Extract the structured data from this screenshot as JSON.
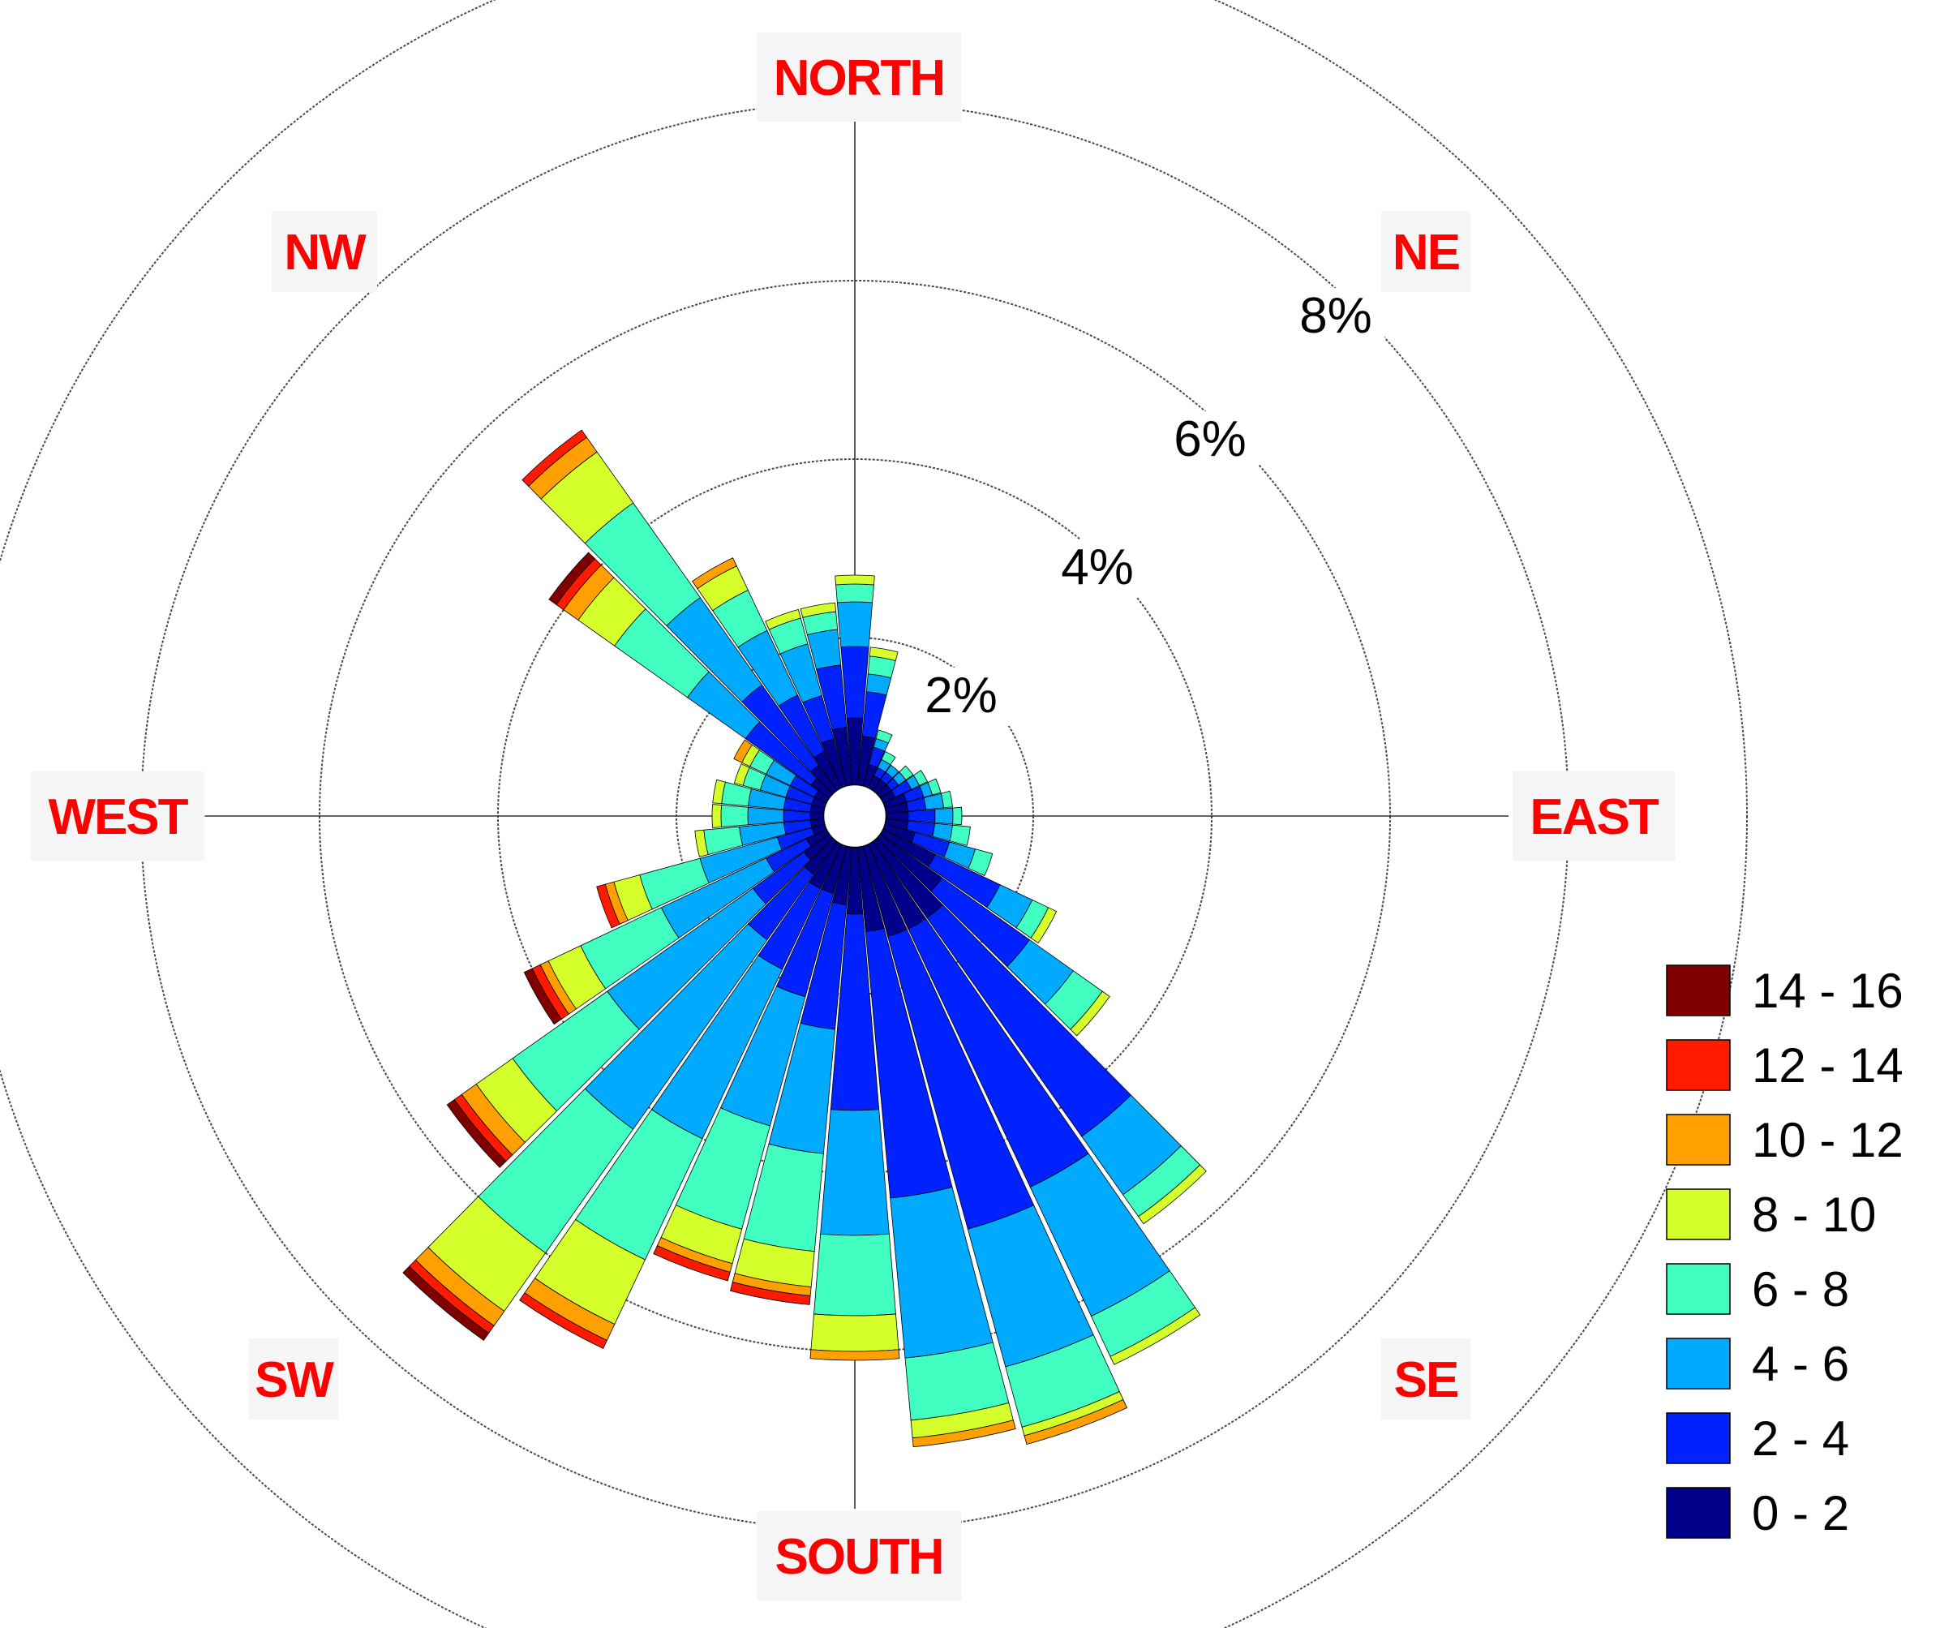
{
  "chart_data": {
    "type": "wind-rose",
    "directions": [
      "NORTH",
      "NE",
      "EAST",
      "SE",
      "SOUTH",
      "SW",
      "WEST",
      "NW"
    ],
    "ring_labels": [
      "2%",
      "4%",
      "6%",
      "8%"
    ],
    "rings": [
      2,
      4,
      6,
      8,
      10
    ],
    "radial_unit": "%",
    "legend_title": "",
    "legend_placement": "bottom-right",
    "speed_bins": [
      {
        "label": "14 - 16",
        "color": "#800000"
      },
      {
        "label": "12 - 14",
        "color": "#ff1a00"
      },
      {
        "label": "10 - 12",
        "color": "#ffa000"
      },
      {
        "label": "8 - 10",
        "color": "#d4ff2a"
      },
      {
        "label": "6 - 8",
        "color": "#40ffc0"
      },
      {
        "label": "4 - 6",
        "color": "#00aaff"
      },
      {
        "label": "2 - 4",
        "color": "#0022ff"
      },
      {
        "label": "0 - 2",
        "color": "#00008b"
      }
    ],
    "sector_width_deg": 10,
    "calm_radius_pct": 0.35,
    "sectors": [
      {
        "dir": 0,
        "cum": [
          1.1,
          1.9,
          2.4,
          2.6,
          2.7,
          2.7,
          2.7,
          2.7
        ]
      },
      {
        "dir": 10,
        "cum": [
          0.9,
          1.4,
          1.6,
          1.8,
          1.9,
          1.9,
          1.9,
          1.9
        ]
      },
      {
        "dir": 20,
        "cum": [
          0.6,
          0.8,
          0.9,
          1.0,
          1.0,
          1.0,
          1.0,
          1.0
        ]
      },
      {
        "dir": 30,
        "cum": [
          0.5,
          0.6,
          0.7,
          0.8,
          0.8,
          0.8,
          0.8,
          0.8
        ]
      },
      {
        "dir": 40,
        "cum": [
          0.5,
          0.6,
          0.7,
          0.7,
          0.7,
          0.7,
          0.7,
          0.7
        ]
      },
      {
        "dir": 50,
        "cum": [
          0.5,
          0.6,
          0.7,
          0.8,
          0.8,
          0.8,
          0.8,
          0.8
        ]
      },
      {
        "dir": 60,
        "cum": [
          0.5,
          0.7,
          0.8,
          0.9,
          0.9,
          0.9,
          0.9,
          0.9
        ]
      },
      {
        "dir": 70,
        "cum": [
          0.6,
          0.8,
          0.9,
          1.0,
          1.0,
          1.0,
          1.0,
          1.0
        ]
      },
      {
        "dir": 80,
        "cum": [
          0.6,
          0.8,
          1.0,
          1.1,
          1.1,
          1.1,
          1.1,
          1.1
        ]
      },
      {
        "dir": 90,
        "cum": [
          0.6,
          0.9,
          1.1,
          1.2,
          1.2,
          1.2,
          1.2,
          1.2
        ]
      },
      {
        "dir": 100,
        "cum": [
          0.6,
          0.9,
          1.1,
          1.3,
          1.3,
          1.3,
          1.3,
          1.3
        ]
      },
      {
        "dir": 110,
        "cum": [
          0.7,
          1.1,
          1.4,
          1.6,
          1.6,
          1.6,
          1.6,
          1.6
        ]
      },
      {
        "dir": 120,
        "cum": [
          1.0,
          1.8,
          2.2,
          2.4,
          2.5,
          2.5,
          2.5,
          2.5
        ]
      },
      {
        "dir": 130,
        "cum": [
          1.2,
          2.4,
          3.0,
          3.4,
          3.5,
          3.5,
          3.5,
          3.5
        ]
      },
      {
        "dir": 140,
        "cum": [
          1.4,
          4.4,
          5.2,
          5.5,
          5.6,
          5.6,
          5.6,
          5.6
        ]
      },
      {
        "dir": 150,
        "cum": [
          1.4,
          4.6,
          6.2,
          6.7,
          6.8,
          6.8,
          6.8,
          6.8
        ]
      },
      {
        "dir": 160,
        "cum": [
          1.4,
          4.8,
          6.4,
          7.1,
          7.2,
          7.3,
          7.3,
          7.3
        ]
      },
      {
        "dir": 170,
        "cum": [
          1.3,
          4.3,
          6.1,
          6.8,
          7.0,
          7.1,
          7.1,
          7.1
        ]
      },
      {
        "dir": 180,
        "cum": [
          1.1,
          3.3,
          4.7,
          5.6,
          6.0,
          6.1,
          6.1,
          6.1
        ]
      },
      {
        "dir": 190,
        "cum": [
          1.0,
          2.4,
          3.8,
          4.9,
          5.3,
          5.4,
          5.5,
          5.5
        ]
      },
      {
        "dir": 200,
        "cum": [
          0.9,
          2.1,
          3.6,
          4.8,
          5.2,
          5.3,
          5.4,
          5.4
        ]
      },
      {
        "dir": 210,
        "cum": [
          0.9,
          1.9,
          4.0,
          5.5,
          6.3,
          6.5,
          6.6,
          6.6
        ]
      },
      {
        "dir": 220,
        "cum": [
          0.8,
          1.7,
          4.3,
          6.0,
          6.8,
          7.0,
          7.1,
          7.2
        ]
      },
      {
        "dir": 230,
        "cum": [
          0.7,
          1.4,
          3.4,
          4.7,
          5.2,
          5.4,
          5.5,
          5.6
        ]
      },
      {
        "dir": 240,
        "cum": [
          0.6,
          1.1,
          2.4,
          3.4,
          3.8,
          3.9,
          4.0,
          4.1
        ]
      },
      {
        "dir": 250,
        "cum": [
          0.5,
          0.9,
          1.8,
          2.5,
          2.8,
          2.9,
          3.0,
          3.0
        ]
      },
      {
        "dir": 260,
        "cum": [
          0.5,
          0.8,
          1.3,
          1.7,
          1.8,
          1.8,
          1.8,
          1.8
        ]
      },
      {
        "dir": 270,
        "cum": [
          0.5,
          0.8,
          1.2,
          1.5,
          1.6,
          1.6,
          1.6,
          1.6
        ]
      },
      {
        "dir": 280,
        "cum": [
          0.5,
          0.8,
          1.2,
          1.5,
          1.6,
          1.6,
          1.6,
          1.6
        ]
      },
      {
        "dir": 290,
        "cum": [
          0.5,
          0.8,
          1.1,
          1.3,
          1.4,
          1.4,
          1.4,
          1.4
        ]
      },
      {
        "dir": 300,
        "cum": [
          0.5,
          0.8,
          1.1,
          1.3,
          1.4,
          1.5,
          1.5,
          1.5
        ]
      },
      {
        "dir": 310,
        "cum": [
          0.6,
          1.5,
          2.3,
          3.3,
          3.8,
          4.0,
          4.1,
          4.2
        ]
      },
      {
        "dir": 320,
        "cum": [
          0.7,
          1.8,
          3.0,
          4.3,
          5.0,
          5.2,
          5.3,
          5.3
        ]
      },
      {
        "dir": 330,
        "cum": [
          0.8,
          1.5,
          2.3,
          2.8,
          3.1,
          3.2,
          3.2,
          3.2
        ]
      },
      {
        "dir": 340,
        "cum": [
          0.9,
          1.4,
          2.0,
          2.3,
          2.4,
          2.4,
          2.4,
          2.4
        ]
      },
      {
        "dir": 350,
        "cum": [
          1.0,
          1.7,
          2.1,
          2.3,
          2.4,
          2.4,
          2.4,
          2.4
        ]
      }
    ]
  }
}
